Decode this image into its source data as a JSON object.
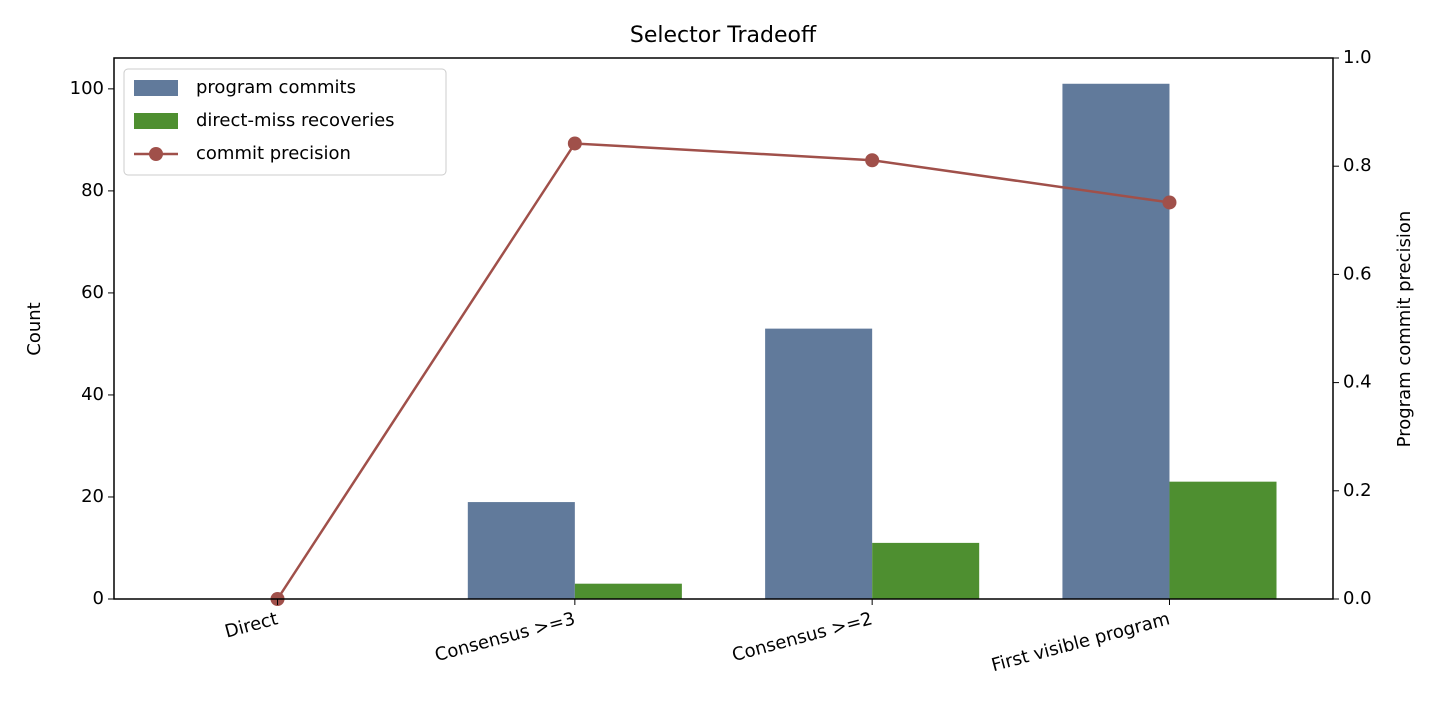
{
  "chart_data": {
    "type": "bar",
    "title": "Selector Tradeoff",
    "ylabel": "Count",
    "y2label": "Program commit precision",
    "categories": [
      "Direct",
      "Consensus >=3",
      "Consensus >=2",
      "First visible program"
    ],
    "series": [
      {
        "name": "program commits",
        "color": "#617a9b",
        "values": [
          0,
          19,
          53,
          101
        ]
      },
      {
        "name": "direct-miss recoveries",
        "color": "#4e8f30",
        "values": [
          0,
          3,
          11,
          23
        ]
      },
      {
        "name": "commit precision",
        "color": "#a0504a",
        "type": "line",
        "axis": "y2",
        "values": [
          0,
          0.842,
          0.811,
          0.733
        ]
      }
    ],
    "ylim": [
      0,
      106.05
    ],
    "yticks": [
      0,
      20,
      40,
      60,
      80,
      100
    ],
    "y2lim": [
      0,
      1
    ],
    "y2ticks": [
      {
        "value": 0,
        "label": "0.0"
      },
      0.2,
      0.4,
      0.6,
      0.8,
      {
        "value": 1,
        "label": "1.0"
      }
    ],
    "legend": "upper left"
  }
}
